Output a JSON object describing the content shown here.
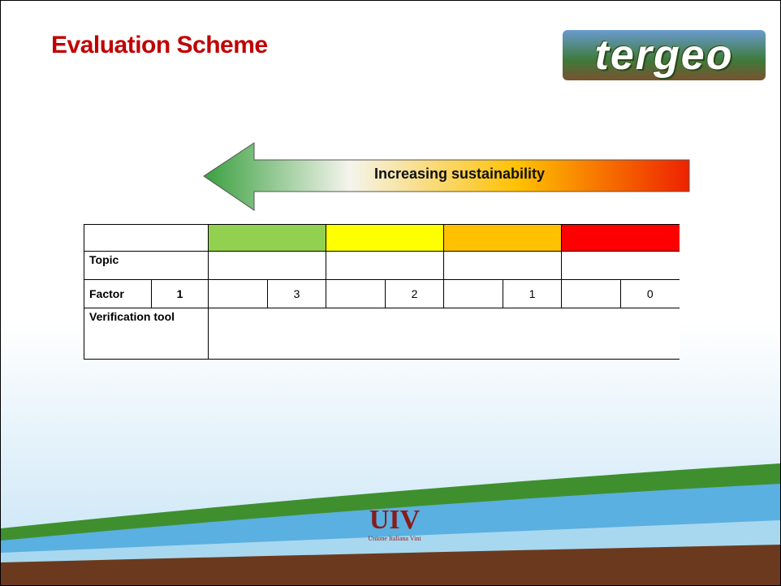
{
  "header": {
    "title": "Evaluation Scheme",
    "logo": "tergeo"
  },
  "arrow": {
    "label": "Increasing sustainability"
  },
  "table": {
    "rows": [
      [
        "Topic"
      ],
      [
        "Factor",
        1,
        3,
        2,
        1,
        0
      ],
      [
        "Verification tool"
      ]
    ]
  },
  "footer": {
    "logo": "UIV",
    "name": "Unione Italiana Vini"
  }
}
